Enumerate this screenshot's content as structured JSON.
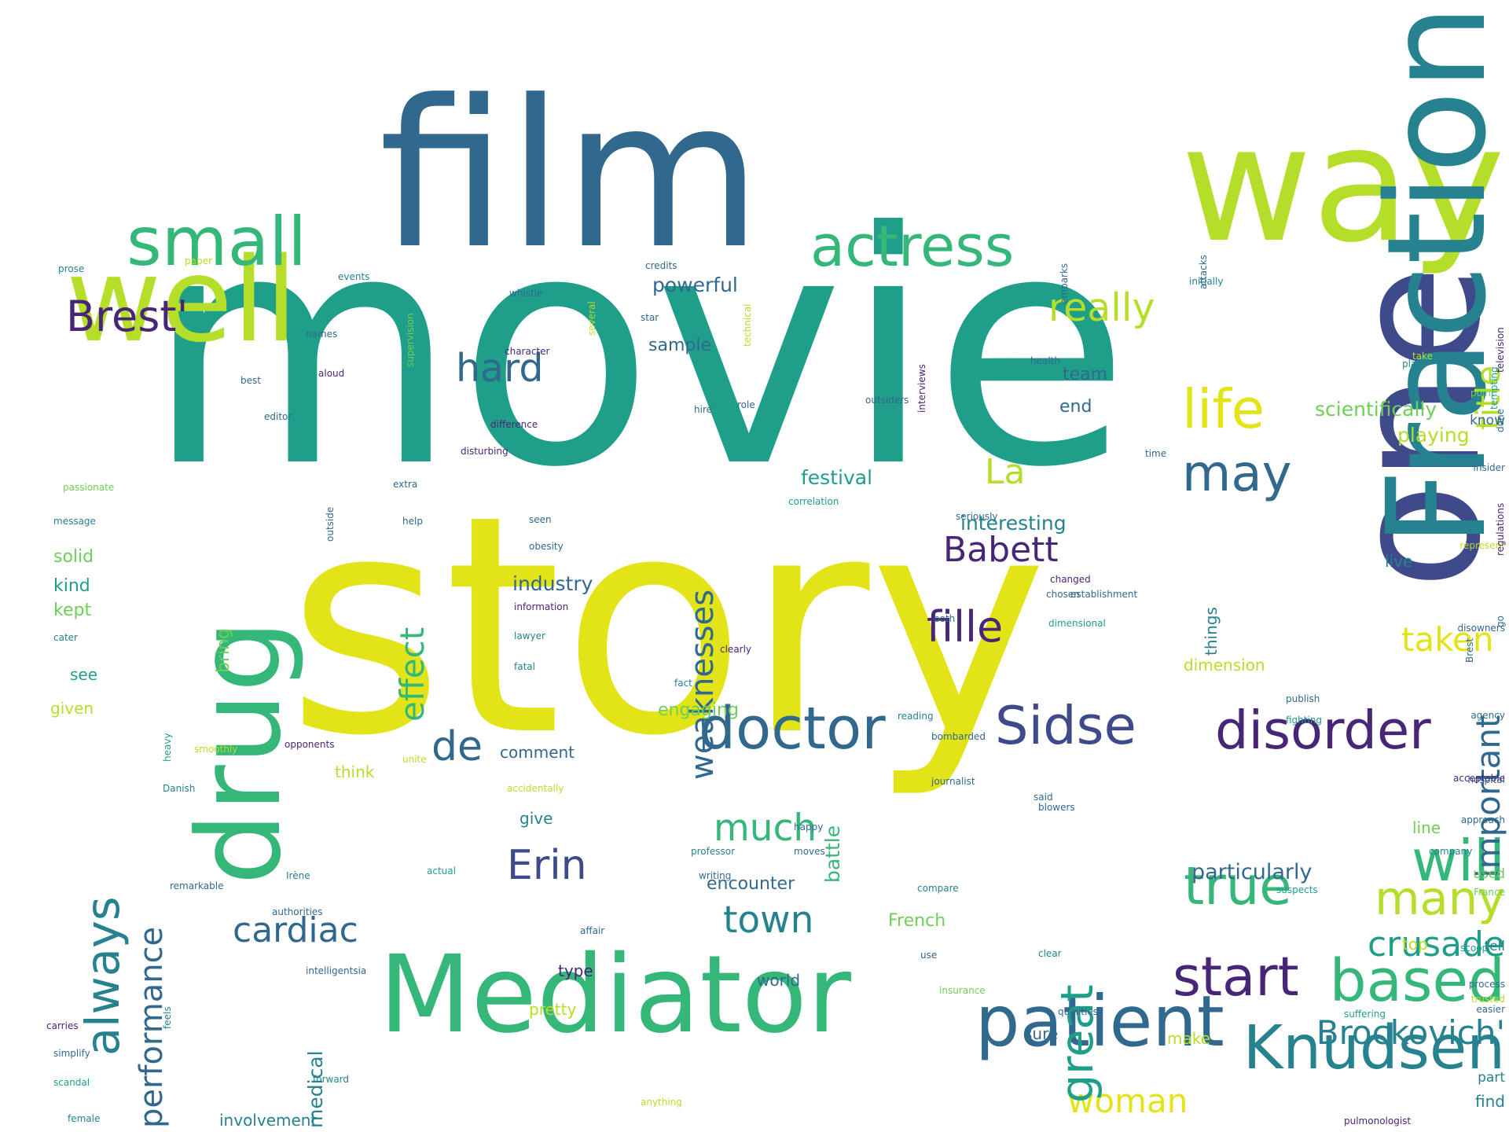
{
  "palette": {
    "purple": "#482677",
    "indigo": "#3e4a89",
    "blue": "#31688e",
    "teal": "#26828e",
    "seagreen": "#1f9e89",
    "green": "#35b779",
    "lightgreen": "#6ece58",
    "lime": "#b5de2b",
    "yellow": "#e2e418"
  },
  "words": [
    {
      "text": "movie",
      "color": "seagreen"
    },
    {
      "text": "story",
      "color": "yellow"
    },
    {
      "text": "film",
      "color": "blue"
    },
    {
      "text": "way",
      "color": "lime"
    },
    {
      "text": "one",
      "color": "indigo"
    },
    {
      "text": "Fraction",
      "color": "teal"
    },
    {
      "text": "well",
      "color": "lime"
    },
    {
      "text": "drug",
      "color": "green"
    },
    {
      "text": "Mediator",
      "color": "green"
    },
    {
      "text": "patient",
      "color": "blue"
    },
    {
      "text": "Knudsen",
      "color": "teal"
    },
    {
      "text": "small",
      "color": "green"
    },
    {
      "text": "actress",
      "color": "green"
    },
    {
      "text": "Brest'",
      "color": "purple"
    },
    {
      "text": "really",
      "color": "lime"
    },
    {
      "text": "life",
      "color": "yellow"
    },
    {
      "text": "hard",
      "color": "blue"
    },
    {
      "text": "may",
      "color": "blue"
    },
    {
      "text": "La",
      "color": "lime"
    },
    {
      "text": "doctor",
      "color": "blue"
    },
    {
      "text": "Sidse",
      "color": "indigo"
    },
    {
      "text": "disorder",
      "color": "purple"
    },
    {
      "text": "de",
      "color": "blue"
    },
    {
      "text": "fille",
      "color": "purple"
    },
    {
      "text": "Babett",
      "color": "purple"
    },
    {
      "text": "Erin",
      "color": "indigo"
    },
    {
      "text": "much",
      "color": "green"
    },
    {
      "text": "cardiac",
      "color": "blue"
    },
    {
      "text": "town",
      "color": "teal"
    },
    {
      "text": "true",
      "color": "green"
    },
    {
      "text": "will",
      "color": "green"
    },
    {
      "text": "many",
      "color": "lime"
    },
    {
      "text": "based",
      "color": "green"
    },
    {
      "text": "crusade",
      "color": "seagreen"
    },
    {
      "text": "start",
      "color": "purple"
    },
    {
      "text": "Brockovich'",
      "color": "teal"
    },
    {
      "text": "taken",
      "color": "yellow"
    },
    {
      "text": "woman",
      "color": "yellow"
    },
    {
      "text": "always",
      "color": "teal"
    },
    {
      "text": "performance",
      "color": "blue"
    },
    {
      "text": "effect",
      "color": "green"
    },
    {
      "text": "weaknesses",
      "color": "blue"
    },
    {
      "text": "great",
      "color": "seagreen"
    },
    {
      "text": "important",
      "color": "blue"
    },
    {
      "text": "title",
      "color": "lime"
    },
    {
      "text": "medical",
      "color": "teal"
    },
    {
      "text": "battle",
      "color": "green"
    },
    {
      "text": "bring",
      "color": "lightgreen"
    },
    {
      "text": "particularly",
      "color": "blue"
    },
    {
      "text": "encounter",
      "color": "blue"
    },
    {
      "text": "industry",
      "color": "blue"
    },
    {
      "text": "interesting",
      "color": "teal"
    },
    {
      "text": "festival",
      "color": "seagreen"
    },
    {
      "text": "scientifically",
      "color": "lightgreen"
    },
    {
      "text": "playing",
      "color": "lime"
    },
    {
      "text": "powerful",
      "color": "blue"
    },
    {
      "text": "sample",
      "color": "blue"
    },
    {
      "text": "end",
      "color": "blue"
    },
    {
      "text": "team",
      "color": "blue"
    },
    {
      "text": "kind",
      "color": "seagreen"
    },
    {
      "text": "solid",
      "color": "lightgreen"
    },
    {
      "text": "kept",
      "color": "lightgreen"
    },
    {
      "text": "see",
      "color": "seagreen"
    },
    {
      "text": "given",
      "color": "lime"
    },
    {
      "text": "engaging",
      "color": "lightgreen"
    },
    {
      "text": "comment",
      "color": "blue"
    },
    {
      "text": "give",
      "color": "teal"
    },
    {
      "text": "think",
      "color": "lime"
    },
    {
      "text": "pretty",
      "color": "lime"
    },
    {
      "text": "world",
      "color": "blue"
    },
    {
      "text": "type",
      "color": "purple"
    },
    {
      "text": "French",
      "color": "lightgreen"
    },
    {
      "text": "involvement",
      "color": "teal"
    },
    {
      "text": "dimension",
      "color": "lime"
    },
    {
      "text": "things",
      "color": "teal"
    },
    {
      "text": "live",
      "color": "teal"
    },
    {
      "text": "know",
      "color": "blue"
    },
    {
      "text": "line",
      "color": "lightgreen"
    },
    {
      "text": "tell",
      "color": "teal"
    },
    {
      "text": "top",
      "color": "lime"
    },
    {
      "text": "sure",
      "color": "blue"
    },
    {
      "text": "make",
      "color": "lime"
    },
    {
      "text": "used",
      "color": "lightgreen"
    },
    {
      "text": "find",
      "color": "teal"
    },
    {
      "text": "part",
      "color": "teal"
    },
    {
      "text": "prose",
      "color": "teal"
    },
    {
      "text": "paper",
      "color": "lime"
    },
    {
      "text": "events",
      "color": "teal"
    },
    {
      "text": "credits",
      "color": "blue"
    },
    {
      "text": "whistle",
      "color": "blue"
    },
    {
      "text": "star",
      "color": "blue"
    },
    {
      "text": "character",
      "color": "purple"
    },
    {
      "text": "names",
      "color": "blue"
    },
    {
      "text": "aloud",
      "color": "purple"
    },
    {
      "text": "best",
      "color": "blue"
    },
    {
      "text": "editor",
      "color": "blue"
    },
    {
      "text": "difference",
      "color": "purple"
    },
    {
      "text": "hire",
      "color": "blue"
    },
    {
      "text": "disturbing",
      "color": "purple"
    },
    {
      "text": "extra",
      "color": "blue"
    },
    {
      "text": "help",
      "color": "blue"
    },
    {
      "text": "health",
      "color": "blue"
    },
    {
      "text": "attacks",
      "color": "blue"
    },
    {
      "text": "initially",
      "color": "teal"
    },
    {
      "text": "outsiders",
      "color": "blue"
    },
    {
      "text": "time",
      "color": "blue"
    },
    {
      "text": "embarks",
      "color": "blue"
    },
    {
      "text": "role",
      "color": "blue"
    },
    {
      "text": "insider",
      "color": "blue"
    },
    {
      "text": "done",
      "color": "blue"
    },
    {
      "text": "point",
      "color": "lightgreen"
    },
    {
      "text": "tempting",
      "color": "seagreen"
    },
    {
      "text": "plays",
      "color": "teal"
    },
    {
      "text": "take",
      "color": "lime"
    },
    {
      "text": "represent",
      "color": "lime"
    },
    {
      "text": "passionate",
      "color": "lightgreen"
    },
    {
      "text": "message",
      "color": "teal"
    },
    {
      "text": "seen",
      "color": "blue"
    },
    {
      "text": "obesity",
      "color": "blue"
    },
    {
      "text": "correlation",
      "color": "seagreen"
    },
    {
      "text": "seriously",
      "color": "blue"
    },
    {
      "text": "information",
      "color": "purple"
    },
    {
      "text": "lawyer",
      "color": "teal"
    },
    {
      "text": "fatal",
      "color": "teal"
    },
    {
      "text": "both",
      "color": "blue"
    },
    {
      "text": "dimensional",
      "color": "seagreen"
    },
    {
      "text": "establishment",
      "color": "blue"
    },
    {
      "text": "chosen",
      "color": "blue"
    },
    {
      "text": "changed",
      "color": "purple"
    },
    {
      "text": "fact",
      "color": "teal"
    },
    {
      "text": "reading",
      "color": "teal"
    },
    {
      "text": "bombarded",
      "color": "blue"
    },
    {
      "text": "journalist",
      "color": "blue"
    },
    {
      "text": "publish",
      "color": "blue"
    },
    {
      "text": "fighting",
      "color": "seagreen"
    },
    {
      "text": "said",
      "color": "blue"
    },
    {
      "text": "blowers",
      "color": "blue"
    },
    {
      "text": "hospital",
      "color": "blue"
    },
    {
      "text": "approach",
      "color": "blue"
    },
    {
      "text": "company",
      "color": "teal"
    },
    {
      "text": "compare",
      "color": "teal"
    },
    {
      "text": "actual",
      "color": "seagreen"
    },
    {
      "text": "writing",
      "color": "blue"
    },
    {
      "text": "authorities",
      "color": "blue"
    },
    {
      "text": "affair",
      "color": "blue"
    },
    {
      "text": "use",
      "color": "blue"
    },
    {
      "text": "clear",
      "color": "teal"
    },
    {
      "text": "suspects",
      "color": "seagreen"
    },
    {
      "text": "scoop",
      "color": "seagreen"
    },
    {
      "text": "intelligentsia",
      "color": "blue"
    },
    {
      "text": "insurance",
      "color": "lightgreen"
    },
    {
      "text": "qualities",
      "color": "blue"
    },
    {
      "text": "suffering",
      "color": "seagreen"
    },
    {
      "text": "process",
      "color": "blue"
    },
    {
      "text": "easier",
      "color": "blue"
    },
    {
      "text": "France",
      "color": "lightgreen"
    },
    {
      "text": "remarkable",
      "color": "blue"
    },
    {
      "text": "carries",
      "color": "purple"
    },
    {
      "text": "simplify",
      "color": "blue"
    },
    {
      "text": "scandal",
      "color": "seagreen"
    },
    {
      "text": "female",
      "color": "teal"
    },
    {
      "text": "forward",
      "color": "teal"
    },
    {
      "text": "pulmonologist",
      "color": "purple"
    },
    {
      "text": "Danish",
      "color": "teal"
    },
    {
      "text": "opponents",
      "color": "purple"
    },
    {
      "text": "accidentally",
      "color": "lime"
    },
    {
      "text": "smoothly",
      "color": "lime"
    },
    {
      "text": "happy",
      "color": "blue"
    },
    {
      "text": "moves",
      "color": "blue"
    },
    {
      "text": "professor",
      "color": "teal"
    },
    {
      "text": "Irène",
      "color": "teal"
    },
    {
      "text": "anything",
      "color": "lime"
    },
    {
      "text": "feels",
      "color": "teal"
    },
    {
      "text": "agency",
      "color": "blue"
    },
    {
      "text": "trusted",
      "color": "lime"
    },
    {
      "text": "disowners",
      "color": "blue"
    },
    {
      "text": "go",
      "color": "blue"
    },
    {
      "text": "cater",
      "color": "teal"
    },
    {
      "text": "heavy",
      "color": "seagreen"
    },
    {
      "text": "unite",
      "color": "lime"
    },
    {
      "text": "clearly",
      "color": "purple"
    },
    {
      "text": "acceptable",
      "color": "purple"
    },
    {
      "text": "regulations",
      "color": "purple"
    },
    {
      "text": "television",
      "color": "purple"
    },
    {
      "text": "outside",
      "color": "blue"
    },
    {
      "text": "supervision",
      "color": "lightgreen"
    },
    {
      "text": "several",
      "color": "lime"
    },
    {
      "text": "technical",
      "color": "lime"
    },
    {
      "text": "interviews",
      "color": "purple"
    },
    {
      "text": "Brest",
      "color": "blue"
    }
  ]
}
